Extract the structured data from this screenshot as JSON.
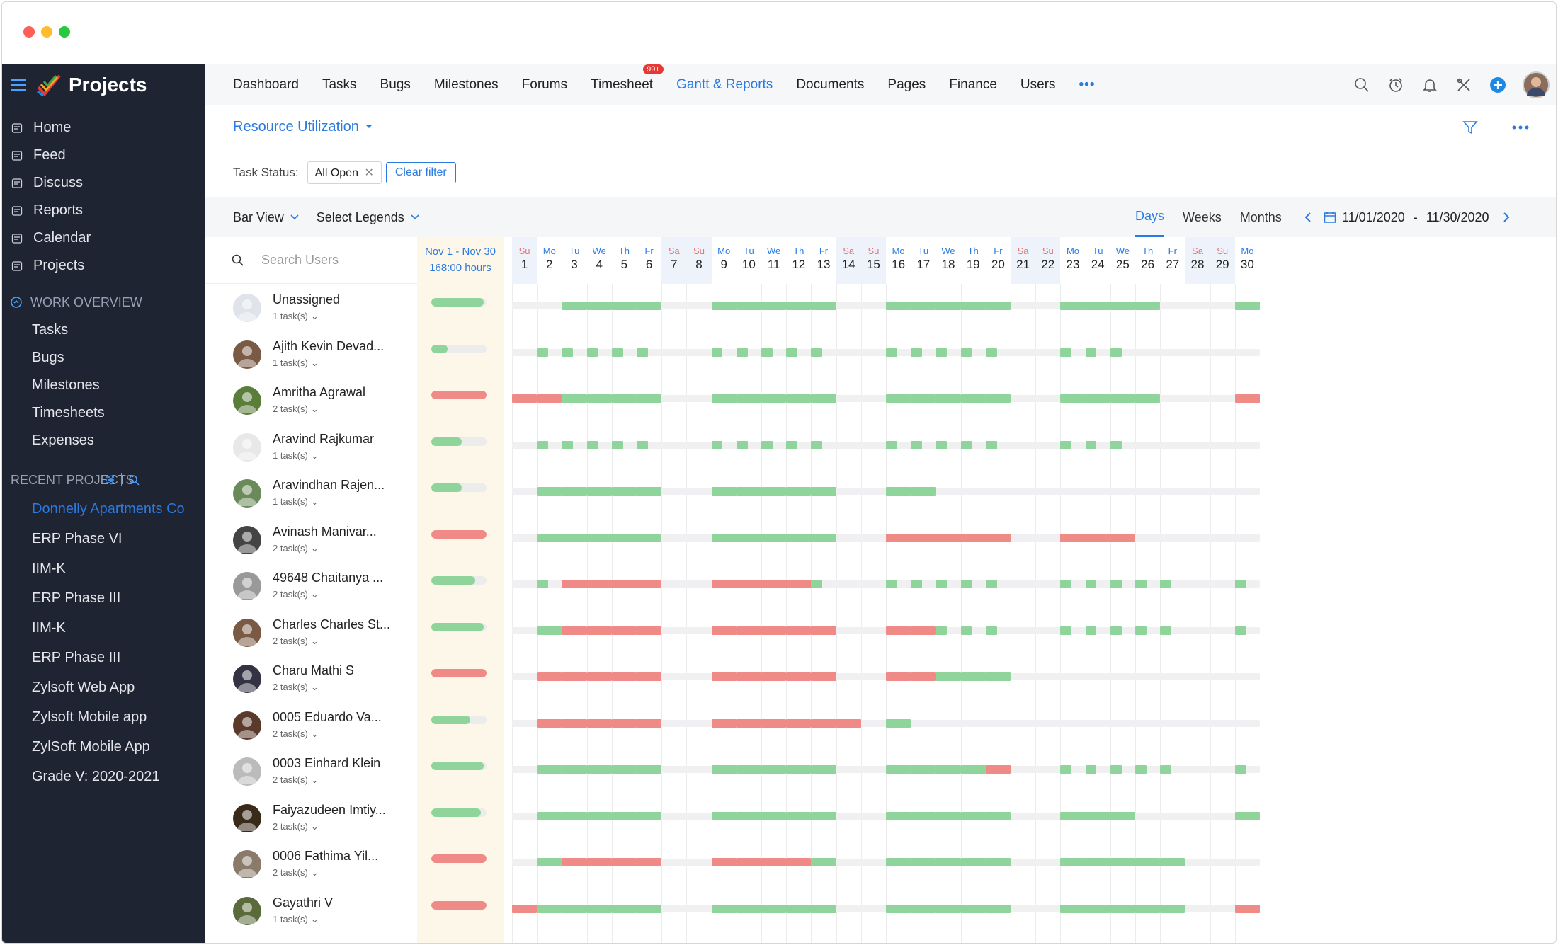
{
  "app": {
    "title": "Projects"
  },
  "colors": {
    "accent": "#2a7ae2",
    "green": "#8fd49a",
    "red": "#f08a86",
    "weekend": "#eef3fb"
  },
  "sidebar": {
    "items": [
      {
        "label": "Home",
        "icon": "home-icon"
      },
      {
        "label": "Feed",
        "icon": "feed-icon"
      },
      {
        "label": "Discuss",
        "icon": "discuss-icon"
      },
      {
        "label": "Reports",
        "icon": "reports-icon"
      },
      {
        "label": "Calendar",
        "icon": "calendar-icon"
      },
      {
        "label": "Projects",
        "icon": "projects-icon"
      }
    ],
    "work_overview": {
      "title": "WORK OVERVIEW",
      "items": [
        "Tasks",
        "Bugs",
        "Milestones",
        "Timesheets",
        "Expenses"
      ]
    },
    "recent": {
      "title": "RECENT PROJECTS",
      "items": [
        "Donnelly Apartments Co",
        "ERP Phase VI",
        "IIM-K",
        "ERP Phase III",
        "IIM-K",
        "ERP Phase III",
        "Zylsoft Web App",
        "Zylsoft Mobile app",
        "ZylSoft Mobile App",
        "Grade V: 2020-2021"
      ]
    }
  },
  "topnav": {
    "items": [
      "Dashboard",
      "Tasks",
      "Bugs",
      "Milestones",
      "Forums",
      "Timesheet",
      "Gantt & Reports",
      "Documents",
      "Pages",
      "Finance",
      "Users"
    ],
    "active": "Gantt & Reports",
    "badge": "99+",
    "more": "•••"
  },
  "report": {
    "title": "Resource Utilization"
  },
  "filter": {
    "label": "Task Status:",
    "chip": "All Open",
    "clear": "Clear filter"
  },
  "toolbar": {
    "bar_view": "Bar View",
    "legends": "Select Legends",
    "views": [
      "Days",
      "Weeks",
      "Months"
    ],
    "active_view": "Days",
    "date_from": "11/01/2020",
    "date_sep": "-",
    "date_to": "11/30/2020"
  },
  "search": {
    "placeholder": "Search Users"
  },
  "summary": {
    "range": "Nov 1 - Nov 30",
    "hours": "168:00 hours"
  },
  "days": [
    {
      "w": "Su",
      "n": "1"
    },
    {
      "w": "Mo",
      "n": "2"
    },
    {
      "w": "Tu",
      "n": "3"
    },
    {
      "w": "We",
      "n": "4"
    },
    {
      "w": "Th",
      "n": "5"
    },
    {
      "w": "Fr",
      "n": "6"
    },
    {
      "w": "Sa",
      "n": "7"
    },
    {
      "w": "Su",
      "n": "8"
    },
    {
      "w": "Mo",
      "n": "9"
    },
    {
      "w": "Tu",
      "n": "10"
    },
    {
      "w": "We",
      "n": "11"
    },
    {
      "w": "Th",
      "n": "12"
    },
    {
      "w": "Fr",
      "n": "13"
    },
    {
      "w": "Sa",
      "n": "14"
    },
    {
      "w": "Su",
      "n": "15"
    },
    {
      "w": "Mo",
      "n": "16"
    },
    {
      "w": "Tu",
      "n": "17"
    },
    {
      "w": "We",
      "n": "18"
    },
    {
      "w": "Th",
      "n": "19"
    },
    {
      "w": "Fr",
      "n": "20"
    },
    {
      "w": "Sa",
      "n": "21"
    },
    {
      "w": "Su",
      "n": "22"
    },
    {
      "w": "Mo",
      "n": "23"
    },
    {
      "w": "Tu",
      "n": "24"
    },
    {
      "w": "We",
      "n": "25"
    },
    {
      "w": "Th",
      "n": "26"
    },
    {
      "w": "Fr",
      "n": "27"
    },
    {
      "w": "Sa",
      "n": "28"
    },
    {
      "w": "Su",
      "n": "29"
    },
    {
      "w": "Mo",
      "n": "30"
    }
  ],
  "users": [
    {
      "name": "Unassigned",
      "tasks": "1 task(s)",
      "summary": 0.95,
      "status": "ok",
      "pattern": "gggggggggggggggggggggggggggggg",
      "full": [
        0,
        0,
        1,
        1,
        1,
        1,
        0,
        0,
        1,
        1,
        1,
        1,
        1,
        0,
        0,
        1,
        1,
        1,
        1,
        1,
        0,
        0,
        1,
        1,
        1,
        1,
        0,
        0,
        0,
        1
      ]
    },
    {
      "name": "Ajith Kevin Devad...",
      "tasks": "1 task(s)",
      "summary": 0.3,
      "status": "ok",
      "full": [
        0,
        "h",
        "h",
        "h",
        "h",
        "h",
        0,
        0,
        "h",
        "h",
        "h",
        "h",
        "h",
        0,
        0,
        "h",
        "h",
        "h",
        "h",
        "h",
        0,
        0,
        "h",
        "h",
        "h",
        0,
        0,
        0,
        0,
        0
      ]
    },
    {
      "name": "Amritha Agrawal",
      "tasks": "2 task(s)",
      "summary": 1,
      "status": "over",
      "full": [
        "r",
        "r",
        1,
        1,
        1,
        1,
        0,
        0,
        1,
        1,
        1,
        1,
        1,
        0,
        0,
        1,
        1,
        1,
        1,
        1,
        0,
        0,
        1,
        1,
        1,
        1,
        0,
        0,
        0,
        "r"
      ]
    },
    {
      "name": "Aravind Rajkumar",
      "tasks": "1 task(s)",
      "summary": 0.55,
      "status": "ok",
      "full": [
        0,
        "h",
        "h",
        "h",
        "h",
        "h",
        0,
        0,
        "h",
        "h",
        "h",
        "h",
        "h",
        0,
        0,
        "h",
        "h",
        "h",
        "h",
        "h",
        0,
        0,
        "h",
        "h",
        "h",
        0,
        0,
        0,
        0,
        0
      ]
    },
    {
      "name": "Aravindhan Rajen...",
      "tasks": "1 task(s)",
      "summary": 0.55,
      "status": "ok",
      "full": [
        0,
        1,
        1,
        1,
        1,
        1,
        0,
        0,
        1,
        1,
        1,
        1,
        1,
        0,
        0,
        1,
        1,
        0,
        0,
        0,
        0,
        0,
        0,
        0,
        0,
        0,
        0,
        0,
        0,
        0
      ]
    },
    {
      "name": "Avinash Manivar...",
      "tasks": "2 task(s)",
      "summary": 1,
      "status": "over",
      "full": [
        0,
        1,
        1,
        1,
        1,
        1,
        0,
        0,
        1,
        1,
        1,
        1,
        1,
        0,
        0,
        "r",
        "r",
        "r",
        "r",
        "r",
        0,
        0,
        "r",
        "r",
        "r",
        0,
        0,
        0,
        0,
        0
      ]
    },
    {
      "name": "49648 Chaitanya ...",
      "tasks": "2 task(s)",
      "summary": 0.8,
      "status": "ok",
      "full": [
        0,
        "h",
        "r",
        "r",
        "r",
        "r",
        0,
        0,
        "r",
        "r",
        "r",
        "r",
        "h",
        0,
        0,
        "h",
        "h",
        "h",
        "h",
        "h",
        0,
        0,
        "h",
        "h",
        "h",
        "h",
        "h",
        0,
        0,
        "h"
      ]
    },
    {
      "name": "Charles Charles St...",
      "tasks": "2 task(s)",
      "summary": 0.95,
      "status": "ok",
      "full": [
        0,
        1,
        "r",
        "r",
        "r",
        "r",
        0,
        0,
        "r",
        "r",
        "r",
        "r",
        "r",
        0,
        0,
        "r",
        "r",
        "h",
        "h",
        "h",
        0,
        0,
        "h",
        "h",
        "h",
        "h",
        "h",
        0,
        0,
        "h"
      ]
    },
    {
      "name": "Charu Mathi S",
      "tasks": "2 task(s)",
      "summary": 1,
      "status": "over",
      "full": [
        0,
        "r",
        "r",
        "r",
        "r",
        "r",
        0,
        0,
        "r",
        "r",
        "r",
        "r",
        "r",
        0,
        0,
        "r",
        "r",
        1,
        1,
        1,
        0,
        0,
        0,
        0,
        0,
        0,
        0,
        0,
        0,
        0
      ]
    },
    {
      "name": "0005 Eduardo Va...",
      "tasks": "2 task(s)",
      "summary": 0.7,
      "status": "ok",
      "full": [
        0,
        "r",
        "r",
        "r",
        "r",
        "r",
        0,
        0,
        "r",
        "r",
        "r",
        "r",
        "r",
        "r",
        0,
        1,
        0,
        0,
        0,
        0,
        0,
        0,
        0,
        0,
        0,
        0,
        0,
        0,
        0,
        0
      ]
    },
    {
      "name": "0003 Einhard Klein",
      "tasks": "2 task(s)",
      "summary": 0.95,
      "status": "ok",
      "full": [
        0,
        1,
        1,
        1,
        1,
        1,
        0,
        0,
        1,
        1,
        1,
        1,
        1,
        0,
        0,
        1,
        1,
        1,
        1,
        "r",
        0,
        0,
        "h",
        "h",
        "h",
        "h",
        "h",
        0,
        0,
        "h"
      ]
    },
    {
      "name": "Faiyazudeen Imtiy...",
      "tasks": "2 task(s)",
      "summary": 0.9,
      "status": "ok",
      "full": [
        0,
        1,
        1,
        1,
        1,
        1,
        0,
        0,
        1,
        1,
        1,
        1,
        1,
        0,
        0,
        1,
        1,
        1,
        1,
        1,
        0,
        0,
        1,
        1,
        1,
        0,
        0,
        0,
        0,
        1
      ]
    },
    {
      "name": "0006 Fathima Yil...",
      "tasks": "2 task(s)",
      "summary": 1,
      "status": "over",
      "full": [
        0,
        1,
        "r",
        "r",
        "r",
        "r",
        0,
        0,
        "r",
        "r",
        "r",
        "r",
        1,
        0,
        0,
        1,
        1,
        1,
        1,
        1,
        0,
        0,
        1,
        1,
        1,
        1,
        1,
        0,
        0,
        0
      ]
    },
    {
      "name": "Gayathri V",
      "tasks": "1 task(s)",
      "summary": 1,
      "status": "over",
      "full": [
        "r",
        1,
        1,
        1,
        1,
        1,
        0,
        0,
        1,
        1,
        1,
        1,
        1,
        0,
        0,
        1,
        1,
        1,
        1,
        1,
        0,
        0,
        1,
        1,
        1,
        1,
        1,
        0,
        0,
        "r"
      ]
    }
  ]
}
